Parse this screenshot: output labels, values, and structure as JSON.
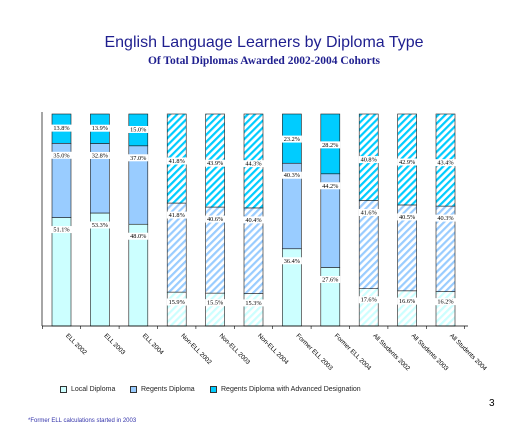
{
  "chart_data": {
    "type": "bar",
    "stacked": true,
    "percent": true,
    "title": "English Language Learners by Diploma Type",
    "subtitle": "Of Total Diplomas Awarded 2002-2004 Cohorts",
    "categories": [
      "ELL 2002",
      "ELL 2003",
      "ELL 2004",
      "Non-ELL 2002",
      "Non-ELL 2003",
      "Non-ELL 2004",
      "Former ELL 2003",
      "Former ELL 2004",
      "All Students 2002",
      "All Students 2003",
      "All Students 2004"
    ],
    "series": [
      {
        "name": "Local Diploma",
        "color": "#ccffff",
        "values": [
          51.1,
          53.3,
          48.0,
          15.9,
          15.5,
          15.3,
          36.4,
          27.6,
          17.6,
          16.6,
          16.2
        ]
      },
      {
        "name": "Regents Diploma",
        "color": "#99ccff",
        "values": [
          35.0,
          32.8,
          37.0,
          41.8,
          40.6,
          40.4,
          40.3,
          44.2,
          41.6,
          40.5,
          40.3
        ]
      },
      {
        "name": "Regents Diploma with Advanced Designation",
        "color": "#00ccff",
        "values": [
          13.8,
          13.9,
          15.0,
          41.8,
          43.9,
          44.3,
          23.2,
          28.2,
          40.8,
          42.9,
          43.4
        ]
      }
    ],
    "hatched_categories": [
      3,
      4,
      5,
      8,
      9,
      10
    ],
    "value_labels": [
      [
        "51.1%",
        "53.3%",
        "48.0%",
        "15.9%",
        "15.5%",
        "15.3%",
        "36.4%",
        "27.6%",
        "17.6%",
        "16.6%",
        "16.2%"
      ],
      [
        "35.0%",
        "32.8%",
        "37.0%",
        "41.8%",
        "40.6%",
        "40.4%",
        "40.3%",
        "44.2%",
        "41.6%",
        "40.5%",
        "40.3%"
      ],
      [
        "13.8%",
        "13.9%",
        "15.0%",
        "41.8%",
        "43.9%",
        "44.3%",
        "23.2%",
        "28.2%",
        "40.8%",
        "42.9%",
        "43.4%"
      ]
    ],
    "ylim": [
      0,
      100
    ],
    "legend_position": "bottom",
    "grid": false
  },
  "legend": {
    "local": "Local Diploma",
    "regents": "Regents Diploma",
    "advanced": "Regents Diploma with Advanced Designation"
  },
  "footnote": "*Former ELL calculations started in 2003",
  "page_number": "3"
}
